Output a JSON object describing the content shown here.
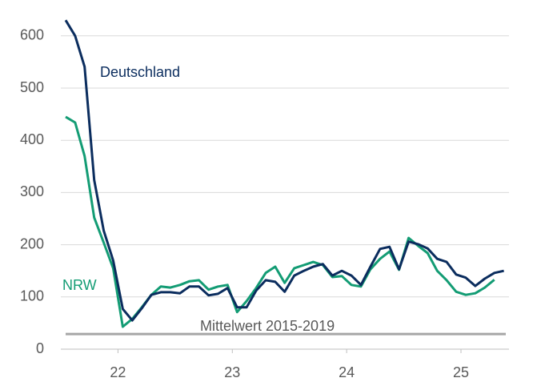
{
  "chart_data": {
    "type": "line",
    "x": [
      22.042,
      22.125,
      22.208,
      22.292,
      22.375,
      22.458,
      22.542,
      22.625,
      22.708,
      22.792,
      22.875,
      22.958,
      23.042,
      23.125,
      23.208,
      23.292,
      23.375,
      23.458,
      23.542,
      23.625,
      23.708,
      23.792,
      23.875,
      23.958,
      24.042,
      24.125,
      24.208,
      24.292,
      24.375,
      24.458,
      24.542,
      24.625,
      24.708,
      24.792,
      24.875,
      24.958,
      25.042,
      25.125,
      25.208,
      25.292,
      25.375,
      25.458,
      25.542,
      25.625,
      25.708,
      25.792,
      25.875
    ],
    "series": [
      {
        "name": "Deutschland",
        "color": "#0b2d5e",
        "values": [
          630,
          600,
          541,
          324,
          227,
          170,
          77,
          55,
          78,
          104,
          109,
          109,
          107,
          120,
          120,
          103,
          106,
          117,
          80,
          80,
          112,
          132,
          129,
          110,
          141,
          150,
          158,
          163,
          141,
          150,
          141,
          123,
          158,
          192,
          196,
          153,
          206,
          201,
          193,
          173,
          167,
          143,
          137,
          121,
          135,
          146,
          150
        ]
      },
      {
        "name": "NRW",
        "color": "#139c74",
        "values": [
          445,
          434,
          370,
          252,
          204,
          155,
          43,
          58,
          80,
          104,
          120,
          118,
          123,
          130,
          132,
          114,
          120,
          123,
          71,
          92,
          117,
          146,
          158,
          127,
          155,
          161,
          167,
          161,
          138,
          140,
          123,
          120,
          153,
          173,
          187,
          152,
          213,
          198,
          184,
          150,
          132,
          110,
          104,
          107,
          118,
          133,
          null
        ]
      }
    ],
    "reference": {
      "label": "Mittelwert 2015-2019",
      "value": 29,
      "color": "#a6a6a6"
    },
    "xlim": [
      22,
      25.92
    ],
    "xticks": [
      {
        "value": 22.5,
        "label": "22"
      },
      {
        "value": 23.5,
        "label": "23"
      },
      {
        "value": 24.5,
        "label": "24"
      },
      {
        "value": 25.5,
        "label": "25"
      }
    ],
    "ylim": [
      0,
      640
    ],
    "yticks": [
      0,
      100,
      200,
      300,
      400,
      500,
      600
    ],
    "grid": true
  }
}
